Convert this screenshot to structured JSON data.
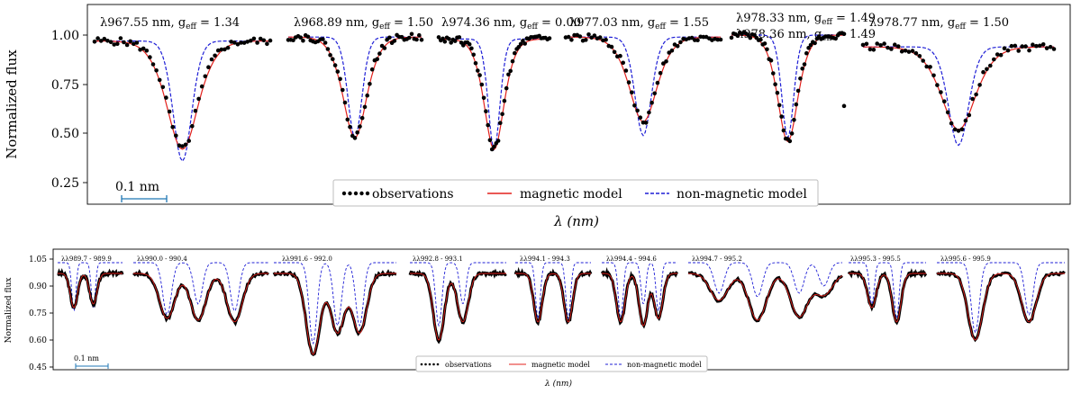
{
  "chart_data": [
    {
      "type": "line",
      "ylabel": "Normalized flux",
      "xlabel": "λ (nm)",
      "ylim": [
        0.17,
        1.1
      ],
      "yticks": [
        "1.00",
        "0.75",
        "0.50",
        "0.25"
      ],
      "scale_bar_label": "0.1 nm",
      "legend": [
        "observations",
        "magnetic model",
        "non-magnetic model"
      ],
      "legend_position": "bottom-right",
      "series_colors": {
        "observations": "#000000",
        "magnetic": "#e3211c",
        "nonmagnetic": "#1f1fd6"
      },
      "panels": [
        {
          "title": "λ967.55 nm, g",
          "sub": "eff",
          "tail": " = 1.34",
          "center_min_mag": 0.42,
          "center_min_nonmag": 0.36,
          "continuum": 0.97
        },
        {
          "title": "λ968.89 nm, g",
          "sub": "eff",
          "tail": " = 1.50",
          "center_min_mag": 0.48,
          "center_min_nonmag": 0.48,
          "continuum": 0.99
        },
        {
          "title": "λ974.36 nm, g",
          "sub": "eff",
          "tail": " = 0.00",
          "center_min_mag": 0.42,
          "center_min_nonmag": 0.42,
          "continuum": 0.98
        },
        {
          "title": "λ977.03 nm, g",
          "sub": "eff",
          "tail": " = 1.55",
          "center_min_mag": 0.56,
          "center_min_nonmag": 0.49,
          "continuum": 0.99
        },
        {
          "title": "λ978.33 nm, g",
          "sub": "eff",
          "tail": " = 1.49",
          "center_min_mag": 0.46,
          "center_min_nonmag": 0.48,
          "continuum": 1.0
        },
        {
          "title": "λ978.36 nm, g",
          "sub": "eff",
          "tail": " = 1.49",
          "center_min_mag": null,
          "center_min_nonmag": null,
          "continuum": null
        },
        {
          "title": "λ978.77 nm, g",
          "sub": "eff",
          "tail": " = 1.50",
          "center_min_mag": 0.52,
          "center_min_nonmag": 0.44,
          "continuum": 0.94
        }
      ]
    },
    {
      "type": "line",
      "ylabel": "Normalized flux",
      "xlabel": "λ (nm)",
      "ylim": [
        0.42,
        1.07
      ],
      "yticks": [
        "1.05",
        "0.90",
        "0.75",
        "0.60",
        "0.45"
      ],
      "scale_bar_label": "0.1 nm",
      "legend": [
        "observations",
        "magnetic model",
        "non-magnetic model"
      ],
      "legend_position": "bottom-center",
      "panels": [
        {
          "title": "λλ989.7 - 989.9",
          "dips": [
            [
              0.25,
              0.78,
              0.76
            ],
            [
              0.55,
              0.8,
              0.78
            ]
          ]
        },
        {
          "title": "λλ990.0 - 990.4",
          "dips": [
            [
              0.25,
              0.72,
              0.74
            ],
            [
              0.48,
              0.71,
              0.8
            ],
            [
              0.75,
              0.7,
              0.76
            ]
          ]
        },
        {
          "title": "λλ991.6 - 992.0",
          "dips": [
            [
              0.32,
              0.52,
              0.58
            ],
            [
              0.52,
              0.64,
              0.68
            ],
            [
              0.7,
              0.64,
              0.68
            ]
          ]
        },
        {
          "title": "λλ992.8 - 993.1",
          "dips": [
            [
              0.3,
              0.6,
              0.68
            ],
            [
              0.55,
              0.7,
              0.8
            ]
          ]
        },
        {
          "title": "λλ994.1 - 994.3",
          "dips": [
            [
              0.3,
              0.7,
              0.72
            ],
            [
              0.7,
              0.7,
              0.72
            ]
          ]
        },
        {
          "title": "λλ994.4 - 994.6",
          "dips": [
            [
              0.25,
              0.7,
              0.72
            ],
            [
              0.55,
              0.68,
              0.8
            ],
            [
              0.75,
              0.72,
              0.76
            ]
          ]
        },
        {
          "title": "λλ994.7 - 995.2",
          "dips": [
            [
              0.2,
              0.82,
              0.86
            ],
            [
              0.45,
              0.71,
              0.84
            ],
            [
              0.72,
              0.73,
              0.86
            ],
            [
              0.88,
              0.85,
              0.9
            ]
          ]
        },
        {
          "title": "λλ995.3 - 995.5",
          "dips": [
            [
              0.3,
              0.78,
              0.8
            ],
            [
              0.62,
              0.7,
              0.72
            ]
          ]
        },
        {
          "title": "λλ995.6 - 995.9",
          "dips": [
            [
              0.3,
              0.6,
              0.64
            ],
            [
              0.72,
              0.7,
              0.74
            ]
          ]
        }
      ]
    }
  ]
}
